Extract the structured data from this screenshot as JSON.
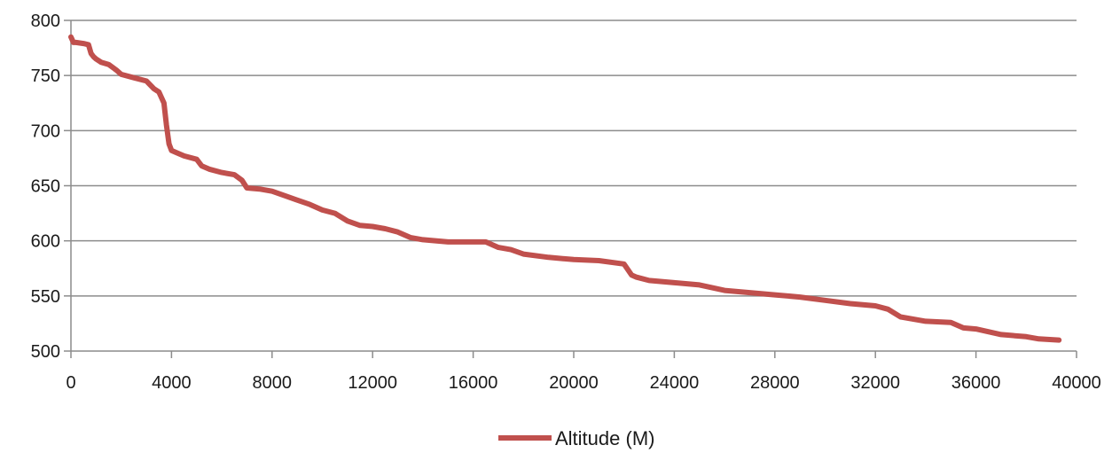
{
  "chart_data": {
    "type": "line",
    "title": "",
    "xlabel": "",
    "ylabel": "",
    "xlim": [
      0,
      40000
    ],
    "ylim": [
      500,
      800
    ],
    "x_ticks": [
      0,
      4000,
      8000,
      12000,
      16000,
      20000,
      24000,
      28000,
      32000,
      36000,
      40000
    ],
    "y_ticks": [
      500,
      550,
      600,
      650,
      700,
      750,
      800
    ],
    "grid": "horizontal",
    "legend_position": "bottom",
    "colors": {
      "series": "#C0504D",
      "grid": "#8c8c8c",
      "axis": "#8c8c8c"
    },
    "series": [
      {
        "name": "Altitude (M)",
        "x": [
          0,
          100,
          200,
          500,
          700,
          800,
          900,
          1000,
          1200,
          1500,
          1800,
          2000,
          2500,
          3000,
          3300,
          3500,
          3700,
          3800,
          3900,
          4000,
          4200,
          4500,
          5000,
          5200,
          5500,
          6000,
          6500,
          6800,
          7000,
          7500,
          8000,
          8500,
          9000,
          9500,
          10000,
          10500,
          11000,
          11500,
          12000,
          12500,
          13000,
          13500,
          14000,
          15000,
          16000,
          16500,
          17000,
          17500,
          18000,
          19000,
          20000,
          21000,
          22000,
          22300,
          22500,
          23000,
          24000,
          25000,
          26000,
          27000,
          28000,
          29000,
          30000,
          31000,
          32000,
          32500,
          33000,
          34000,
          35000,
          35500,
          36000,
          37000,
          38000,
          38500,
          39300
        ],
        "y": [
          785,
          780,
          780,
          779,
          778,
          770,
          767,
          765,
          762,
          760,
          755,
          751,
          748,
          745,
          738,
          735,
          725,
          705,
          688,
          682,
          680,
          677,
          674,
          668,
          665,
          662,
          660,
          655,
          648,
          647,
          645,
          641,
          637,
          633,
          628,
          625,
          618,
          614,
          613,
          611,
          608,
          603,
          601,
          599,
          599,
          599,
          594,
          592,
          588,
          585,
          583,
          582,
          579,
          569,
          567,
          564,
          562,
          560,
          555,
          553,
          551,
          549,
          546,
          543,
          541,
          538,
          531,
          527,
          526,
          521,
          520,
          515,
          513,
          511,
          510
        ]
      }
    ]
  }
}
